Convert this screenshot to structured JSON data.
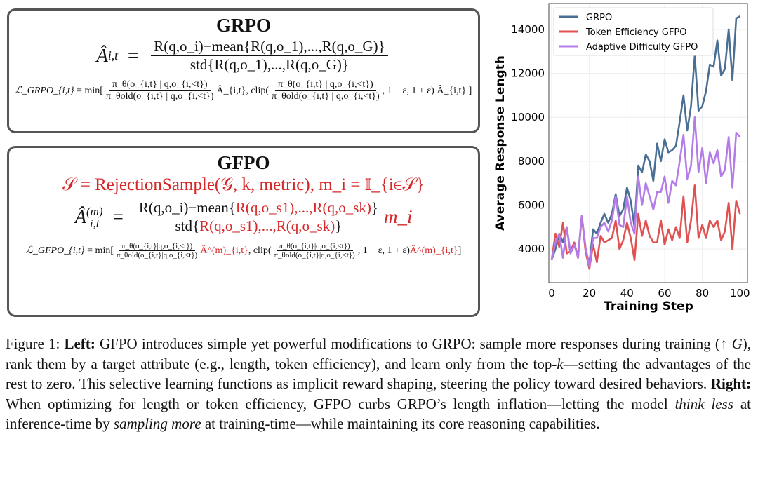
{
  "grpo_box": {
    "title": "GRPO",
    "adv_lhs": "Â",
    "adv_sub": "i,t",
    "adv_num": "R(q,o_i)−mean{R(q,o_1),...,R(q,o_G)}",
    "adv_den": "std{R(q,o_1),...,R(q,o_G)}",
    "loss_lhs": "ℒ_GRPO_{i,t}",
    "loss_num": "π_θ(o_{i,t} | q,o_{i,<t})",
    "loss_den": "π_θold(o_{i,t} | q,o_{i,<t})",
    "loss_rest": "Â_{i,t}, clip(",
    "loss_tail": ", 1 − ε, 1 + ε) Â_{i,t} ]",
    "min": "= min["
  },
  "gfpo_box": {
    "title": "GFPO",
    "sample_eq": "𝒮 = RejectionSample(𝒢, k, metric),  m_i = 𝕀_{i∈𝒮}",
    "adv_lhs": "Â",
    "adv_sup": "(m)",
    "adv_sub": "i,t",
    "adv_num_black": "R(q,o_i)−mean{",
    "adv_num_red": "R(q,o_s1),...,R(q,o_sk)",
    "adv_den_black": "std{",
    "adv_den_red": "R(q,o_s1),...,R(q,o_sk)",
    "mult": "m_i",
    "loss_lhs": "ℒ_GFPO_{i,t}",
    "loss_num": "π_θ(o_{i,t}|q,o_{i,<t})",
    "loss_den": "π_θold(o_{i,t}|q,o_{i,<t})",
    "loss_adv": "Â^(m)_{i,t}",
    "clip": ", clip(",
    "loss_tail": ", 1 − ε, 1 + ε)",
    "min": "= min["
  },
  "chart_data": {
    "type": "line",
    "xlabel": "Training Step",
    "ylabel": "Average Response Length",
    "xlim": [
      -1.5,
      104
    ],
    "ylim": [
      2470,
      15180
    ],
    "xticks": [
      0,
      20,
      40,
      60,
      80,
      100
    ],
    "yticks": [
      4000,
      6000,
      8000,
      10000,
      12000,
      14000
    ],
    "grid": true,
    "legend": "top-left",
    "x": [
      0,
      2,
      4,
      6,
      8,
      10,
      12,
      14,
      16,
      18,
      20,
      22,
      24,
      26,
      28,
      30,
      32,
      34,
      36,
      38,
      40,
      42,
      44,
      46,
      48,
      50,
      52,
      54,
      56,
      58,
      60,
      62,
      64,
      66,
      68,
      70,
      72,
      74,
      76,
      78,
      80,
      82,
      84,
      86,
      88,
      90,
      92,
      94,
      96,
      98,
      100
    ],
    "series": [
      {
        "name": "GRPO",
        "color": "#4a6f94",
        "values": [
          3500,
          4000,
          4700,
          4300,
          5000,
          3800,
          4200,
          3700,
          5500,
          4000,
          3300,
          4900,
          4700,
          5200,
          5600,
          5200,
          5600,
          6500,
          5500,
          5800,
          6800,
          6200,
          5000,
          7800,
          7500,
          8300,
          8000,
          7100,
          8800,
          8000,
          9000,
          8400,
          8500,
          8700,
          9800,
          11000,
          9400,
          10500,
          12800,
          10300,
          10500,
          11200,
          12400,
          12300,
          13500,
          11900,
          12200,
          14000,
          11700,
          14500,
          14600
        ]
      },
      {
        "name": "Token Efficiency GFPO",
        "color": "#e05252",
        "values": [
          3500,
          4700,
          4100,
          5200,
          3800,
          3900,
          4300,
          3600,
          5500,
          3900,
          3100,
          4200,
          3400,
          4600,
          4300,
          4400,
          4500,
          5300,
          4000,
          4400,
          5200,
          4500,
          3500,
          5600,
          4600,
          5300,
          4600,
          4300,
          4300,
          5300,
          4200,
          4900,
          4400,
          5000,
          4500,
          6400,
          4300,
          5300,
          6900,
          4500,
          5100,
          4500,
          5300,
          5000,
          5300,
          4400,
          4800,
          6100,
          4000,
          6200,
          5600
        ]
      },
      {
        "name": "Adaptive Difficulty GFPO",
        "color": "#b57be8",
        "values": [
          3500,
          4300,
          4700,
          3600,
          5000,
          3800,
          4200,
          3600,
          5500,
          4100,
          3200,
          4500,
          4500,
          5000,
          5200,
          4800,
          5300,
          6400,
          5100,
          5000,
          6400,
          5200,
          4700,
          7300,
          6000,
          7000,
          6400,
          5800,
          6600,
          6600,
          7300,
          6100,
          7100,
          6900,
          8000,
          9200,
          7200,
          7800,
          10000,
          7500,
          8600,
          7000,
          8400,
          7900,
          8500,
          7300,
          7600,
          9100,
          6800,
          9300,
          9100
        ]
      }
    ]
  },
  "caption": {
    "fig": "Figure 1: ",
    "left_label": "Left:",
    "t1": " GFPO introduces simple yet powerful modifications to GRPO: sample more responses during training (↑ ",
    "G": "G",
    "t2": "), rank them by a target attribute (e.g., length, token efficiency), and learn only from the top-",
    "k": "k",
    "t3": "—setting the advantages of the rest to zero. This selective learning functions as implicit reward shaping, steering the policy toward desired behaviors. ",
    "right_label": "Right:",
    "t4": " When optimizing for length or token efficiency, GFPO curbs GRPO’s length inflation—letting the model ",
    "think_less": "think less",
    "t5": " at inference-time by ",
    "sampling_more": "sampling more",
    "t6": " at training-time—while maintaining its core reasoning capabilities."
  }
}
